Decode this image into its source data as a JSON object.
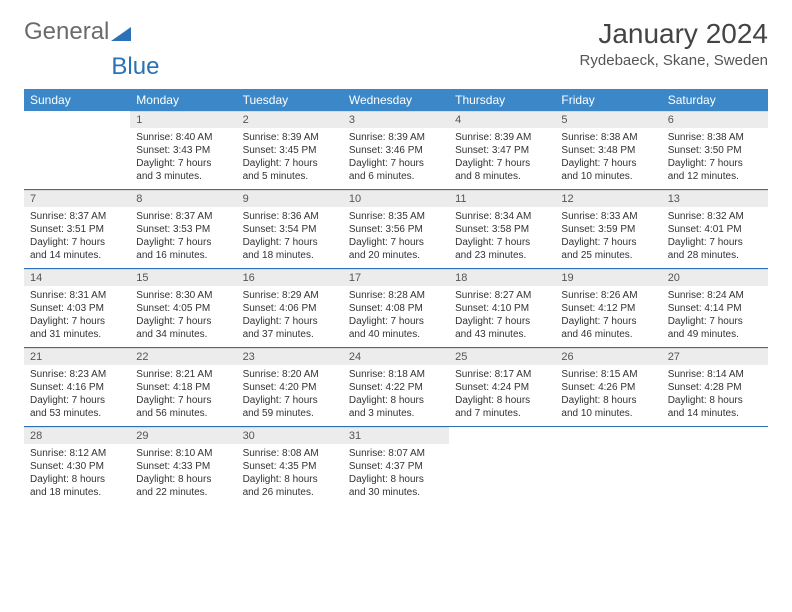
{
  "logo": {
    "word1": "General",
    "word2": "Blue"
  },
  "title": "January 2024",
  "location": "Rydebaeck, Skane, Sweden",
  "day_headers": [
    "Sunday",
    "Monday",
    "Tuesday",
    "Wednesday",
    "Thursday",
    "Friday",
    "Saturday"
  ],
  "colors": {
    "header_bg": "#3b87c8",
    "header_text": "#ffffff",
    "daynum_bg": "#ececec",
    "row_divider": "#2a71b8",
    "logo_gray": "#6b6b6b",
    "logo_blue": "#2a71b8",
    "body_text": "#333333",
    "background": "#ffffff"
  },
  "type": "calendar",
  "weeks": [
    [
      {
        "day": "",
        "lines": []
      },
      {
        "day": "1",
        "lines": [
          "Sunrise: 8:40 AM",
          "Sunset: 3:43 PM",
          "Daylight: 7 hours",
          "and 3 minutes."
        ]
      },
      {
        "day": "2",
        "lines": [
          "Sunrise: 8:39 AM",
          "Sunset: 3:45 PM",
          "Daylight: 7 hours",
          "and 5 minutes."
        ]
      },
      {
        "day": "3",
        "lines": [
          "Sunrise: 8:39 AM",
          "Sunset: 3:46 PM",
          "Daylight: 7 hours",
          "and 6 minutes."
        ]
      },
      {
        "day": "4",
        "lines": [
          "Sunrise: 8:39 AM",
          "Sunset: 3:47 PM",
          "Daylight: 7 hours",
          "and 8 minutes."
        ]
      },
      {
        "day": "5",
        "lines": [
          "Sunrise: 8:38 AM",
          "Sunset: 3:48 PM",
          "Daylight: 7 hours",
          "and 10 minutes."
        ]
      },
      {
        "day": "6",
        "lines": [
          "Sunrise: 8:38 AM",
          "Sunset: 3:50 PM",
          "Daylight: 7 hours",
          "and 12 minutes."
        ]
      }
    ],
    [
      {
        "day": "7",
        "lines": [
          "Sunrise: 8:37 AM",
          "Sunset: 3:51 PM",
          "Daylight: 7 hours",
          "and 14 minutes."
        ]
      },
      {
        "day": "8",
        "lines": [
          "Sunrise: 8:37 AM",
          "Sunset: 3:53 PM",
          "Daylight: 7 hours",
          "and 16 minutes."
        ]
      },
      {
        "day": "9",
        "lines": [
          "Sunrise: 8:36 AM",
          "Sunset: 3:54 PM",
          "Daylight: 7 hours",
          "and 18 minutes."
        ]
      },
      {
        "day": "10",
        "lines": [
          "Sunrise: 8:35 AM",
          "Sunset: 3:56 PM",
          "Daylight: 7 hours",
          "and 20 minutes."
        ]
      },
      {
        "day": "11",
        "lines": [
          "Sunrise: 8:34 AM",
          "Sunset: 3:58 PM",
          "Daylight: 7 hours",
          "and 23 minutes."
        ]
      },
      {
        "day": "12",
        "lines": [
          "Sunrise: 8:33 AM",
          "Sunset: 3:59 PM",
          "Daylight: 7 hours",
          "and 25 minutes."
        ]
      },
      {
        "day": "13",
        "lines": [
          "Sunrise: 8:32 AM",
          "Sunset: 4:01 PM",
          "Daylight: 7 hours",
          "and 28 minutes."
        ]
      }
    ],
    [
      {
        "day": "14",
        "lines": [
          "Sunrise: 8:31 AM",
          "Sunset: 4:03 PM",
          "Daylight: 7 hours",
          "and 31 minutes."
        ]
      },
      {
        "day": "15",
        "lines": [
          "Sunrise: 8:30 AM",
          "Sunset: 4:05 PM",
          "Daylight: 7 hours",
          "and 34 minutes."
        ]
      },
      {
        "day": "16",
        "lines": [
          "Sunrise: 8:29 AM",
          "Sunset: 4:06 PM",
          "Daylight: 7 hours",
          "and 37 minutes."
        ]
      },
      {
        "day": "17",
        "lines": [
          "Sunrise: 8:28 AM",
          "Sunset: 4:08 PM",
          "Daylight: 7 hours",
          "and 40 minutes."
        ]
      },
      {
        "day": "18",
        "lines": [
          "Sunrise: 8:27 AM",
          "Sunset: 4:10 PM",
          "Daylight: 7 hours",
          "and 43 minutes."
        ]
      },
      {
        "day": "19",
        "lines": [
          "Sunrise: 8:26 AM",
          "Sunset: 4:12 PM",
          "Daylight: 7 hours",
          "and 46 minutes."
        ]
      },
      {
        "day": "20",
        "lines": [
          "Sunrise: 8:24 AM",
          "Sunset: 4:14 PM",
          "Daylight: 7 hours",
          "and 49 minutes."
        ]
      }
    ],
    [
      {
        "day": "21",
        "lines": [
          "Sunrise: 8:23 AM",
          "Sunset: 4:16 PM",
          "Daylight: 7 hours",
          "and 53 minutes."
        ]
      },
      {
        "day": "22",
        "lines": [
          "Sunrise: 8:21 AM",
          "Sunset: 4:18 PM",
          "Daylight: 7 hours",
          "and 56 minutes."
        ]
      },
      {
        "day": "23",
        "lines": [
          "Sunrise: 8:20 AM",
          "Sunset: 4:20 PM",
          "Daylight: 7 hours",
          "and 59 minutes."
        ]
      },
      {
        "day": "24",
        "lines": [
          "Sunrise: 8:18 AM",
          "Sunset: 4:22 PM",
          "Daylight: 8 hours",
          "and 3 minutes."
        ]
      },
      {
        "day": "25",
        "lines": [
          "Sunrise: 8:17 AM",
          "Sunset: 4:24 PM",
          "Daylight: 8 hours",
          "and 7 minutes."
        ]
      },
      {
        "day": "26",
        "lines": [
          "Sunrise: 8:15 AM",
          "Sunset: 4:26 PM",
          "Daylight: 8 hours",
          "and 10 minutes."
        ]
      },
      {
        "day": "27",
        "lines": [
          "Sunrise: 8:14 AM",
          "Sunset: 4:28 PM",
          "Daylight: 8 hours",
          "and 14 minutes."
        ]
      }
    ],
    [
      {
        "day": "28",
        "lines": [
          "Sunrise: 8:12 AM",
          "Sunset: 4:30 PM",
          "Daylight: 8 hours",
          "and 18 minutes."
        ]
      },
      {
        "day": "29",
        "lines": [
          "Sunrise: 8:10 AM",
          "Sunset: 4:33 PM",
          "Daylight: 8 hours",
          "and 22 minutes."
        ]
      },
      {
        "day": "30",
        "lines": [
          "Sunrise: 8:08 AM",
          "Sunset: 4:35 PM",
          "Daylight: 8 hours",
          "and 26 minutes."
        ]
      },
      {
        "day": "31",
        "lines": [
          "Sunrise: 8:07 AM",
          "Sunset: 4:37 PM",
          "Daylight: 8 hours",
          "and 30 minutes."
        ]
      },
      {
        "day": "",
        "lines": []
      },
      {
        "day": "",
        "lines": []
      },
      {
        "day": "",
        "lines": []
      }
    ]
  ]
}
